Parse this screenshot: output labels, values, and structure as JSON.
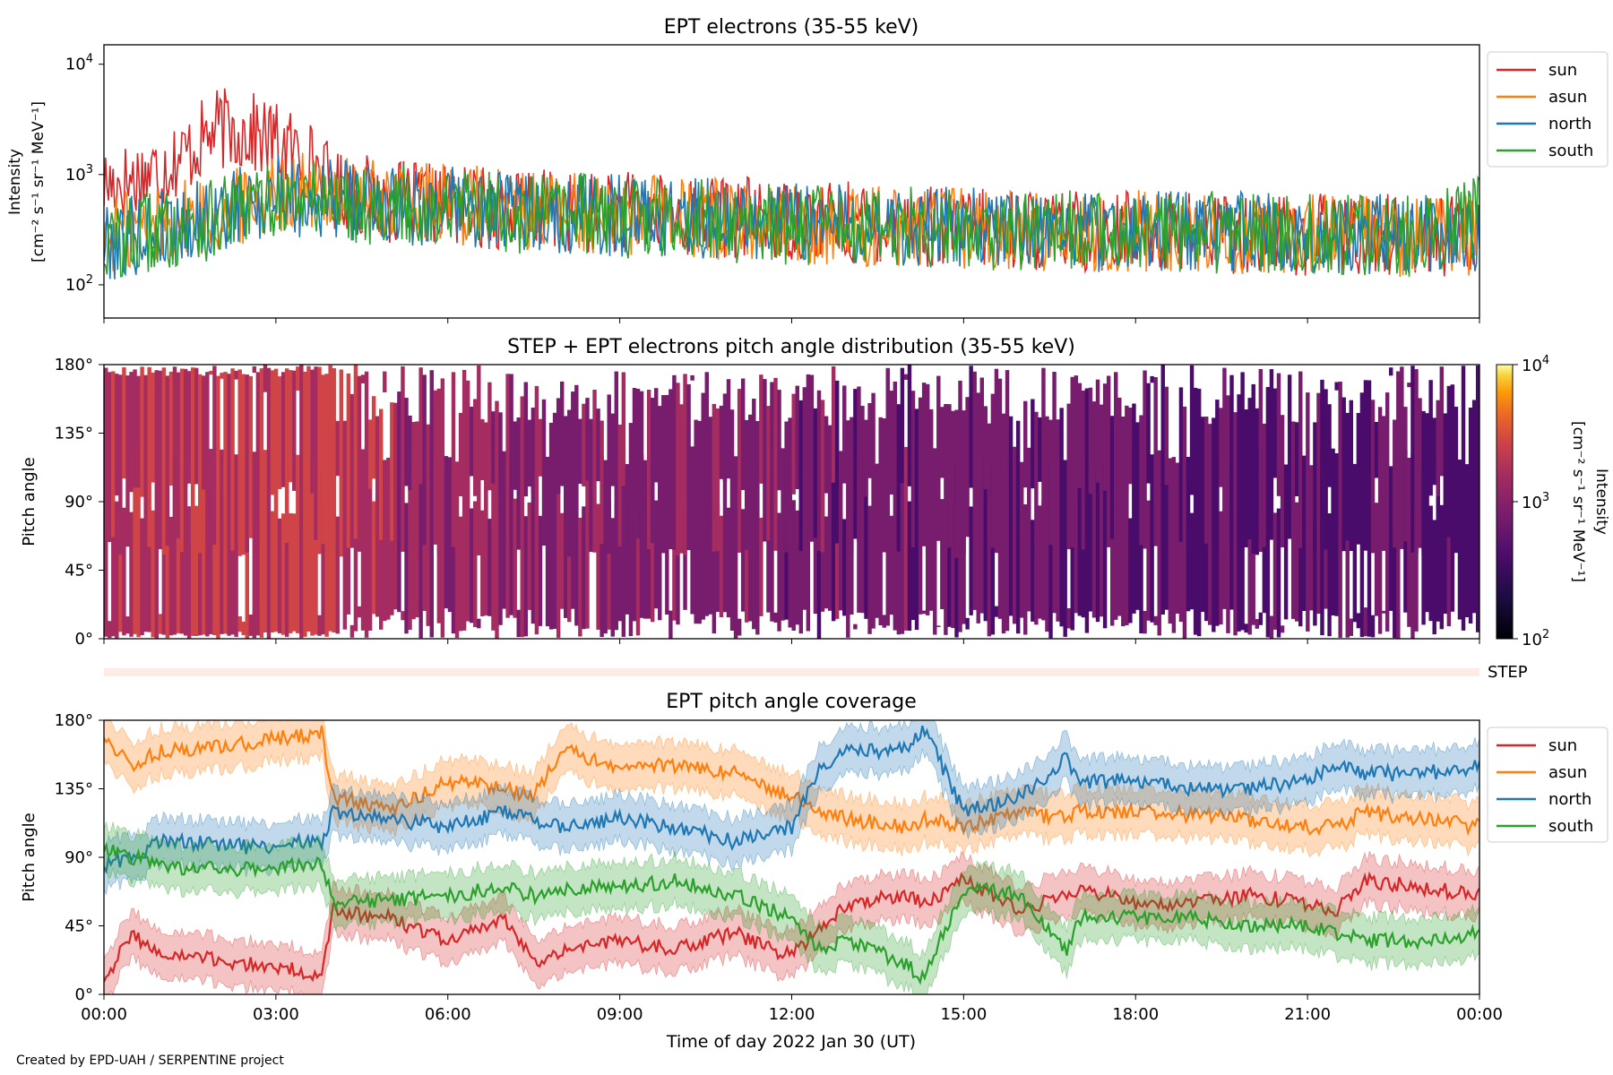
{
  "figure": {
    "footer": "Created by EPD-UAH / SERPENTINE project",
    "xlabel": "Time of day 2022 Jan 30 (UT)",
    "xticks": [
      "00:00",
      "03:00",
      "06:00",
      "09:00",
      "12:00",
      "15:00",
      "18:00",
      "21:00",
      "00:00"
    ]
  },
  "chart_data": [
    {
      "id": "intensity",
      "type": "line",
      "title": "EPT electrons (35-55 keV)",
      "ylabel_line1": "Intensity",
      "ylabel_line2": "[cm⁻² s⁻¹ sr⁻¹ MeV⁻¹]",
      "yscale": "log",
      "ylim": [
        50,
        15000
      ],
      "yticks": [
        {
          "base": "10",
          "exp": "2"
        },
        {
          "base": "10",
          "exp": "3"
        },
        {
          "base": "10",
          "exp": "4"
        }
      ],
      "xlim_hours": [
        0,
        24
      ],
      "x_hours": [
        0,
        0.5,
        1,
        1.5,
        2,
        2.5,
        3,
        3.5,
        4,
        5,
        6,
        7,
        8,
        9,
        10,
        11,
        12,
        13,
        14,
        15,
        16,
        17,
        18,
        19,
        20,
        21,
        22,
        23,
        24
      ],
      "series": [
        {
          "name": "sun",
          "color": "#d62728",
          "values": [
            1000,
            1100,
            1400,
            2000,
            3200,
            3000,
            2400,
            1800,
            900,
            700,
            650,
            600,
            580,
            560,
            520,
            500,
            480,
            450,
            420,
            400,
            390,
            380,
            380,
            370,
            360,
            350,
            350,
            340,
            330
          ]
        },
        {
          "name": "asun",
          "color": "#ff7f0e",
          "values": [
            350,
            400,
            450,
            500,
            520,
            700,
            900,
            850,
            800,
            700,
            650,
            600,
            560,
            540,
            520,
            480,
            450,
            430,
            420,
            400,
            390,
            380,
            380,
            370,
            360,
            350,
            350,
            340,
            330
          ]
        },
        {
          "name": "north",
          "color": "#1f77b4",
          "values": [
            300,
            350,
            400,
            450,
            500,
            650,
            800,
            780,
            750,
            680,
            620,
            580,
            540,
            520,
            500,
            470,
            450,
            430,
            420,
            400,
            390,
            380,
            380,
            370,
            360,
            350,
            350,
            340,
            330
          ]
        },
        {
          "name": "south",
          "color": "#2ca02c",
          "values": [
            280,
            330,
            380,
            420,
            480,
            600,
            750,
            740,
            720,
            650,
            600,
            560,
            530,
            510,
            490,
            460,
            440,
            420,
            410,
            400,
            390,
            380,
            380,
            370,
            360,
            350,
            350,
            340,
            500
          ]
        }
      ],
      "legend": "outside-right"
    },
    {
      "id": "pad",
      "type": "heatmap",
      "title": "STEP + EPT electrons pitch angle distribution (35-55 keV)",
      "ylabel": "Pitch angle",
      "yticks": [
        "0°",
        "45°",
        "90°",
        "135°",
        "180°"
      ],
      "ylim": [
        0,
        180
      ],
      "xlim_hours": [
        0,
        24
      ],
      "colorbar": {
        "label_line1": "Intensity",
        "label_line2": "[cm⁻² s⁻¹ sr⁻¹ MeV⁻¹]",
        "scale": "log",
        "range": [
          100,
          10000
        ],
        "ticks": [
          {
            "base": "10",
            "exp": "2"
          },
          {
            "base": "10",
            "exp": "3"
          },
          {
            "base": "10",
            "exp": "4"
          }
        ],
        "colormap": "inferno"
      },
      "intensity_by_hour": [
        900,
        950,
        1000,
        1100,
        850,
        700,
        650,
        600,
        550,
        520,
        500,
        480,
        460,
        440,
        420,
        400,
        390,
        380,
        370,
        360,
        350,
        340,
        330,
        320
      ]
    },
    {
      "id": "step",
      "type": "bar",
      "label": "STEP"
    },
    {
      "id": "coverage",
      "type": "area",
      "title": "EPT pitch angle coverage",
      "ylabel": "Pitch angle",
      "yticks": [
        "0°",
        "45°",
        "90°",
        "135°",
        "180°"
      ],
      "ylim": [
        0,
        180
      ],
      "xlim_hours": [
        0,
        24
      ],
      "x_hours": [
        0,
        0.5,
        1,
        1.5,
        2,
        2.5,
        3,
        3.5,
        3.8,
        4,
        5,
        6,
        7,
        7.5,
        8,
        9,
        10,
        11,
        12,
        12.5,
        13,
        14,
        14.3,
        15,
        16,
        16.8,
        17,
        18,
        19,
        20,
        21,
        21.5,
        22,
        23,
        24
      ],
      "series": [
        {
          "name": "sun",
          "color": "#d62728",
          "values": [
            10,
            40,
            25,
            25,
            22,
            20,
            18,
            15,
            10,
            55,
            50,
            35,
            50,
            20,
            30,
            35,
            30,
            40,
            25,
            45,
            60,
            65,
            60,
            75,
            55,
            65,
            70,
            60,
            60,
            65,
            60,
            55,
            75,
            70,
            65
          ]
        },
        {
          "name": "asun",
          "color": "#ff7f0e",
          "values": [
            170,
            150,
            160,
            160,
            162,
            165,
            168,
            170,
            172,
            130,
            120,
            140,
            135,
            130,
            160,
            150,
            150,
            145,
            130,
            120,
            115,
            110,
            115,
            110,
            120,
            115,
            120,
            120,
            118,
            115,
            110,
            110,
            120,
            115,
            110
          ]
        },
        {
          "name": "north",
          "color": "#1f77b4",
          "values": [
            85,
            90,
            100,
            100,
            98,
            97,
            98,
            100,
            100,
            120,
            115,
            110,
            120,
            115,
            110,
            115,
            110,
            100,
            110,
            150,
            160,
            160,
            175,
            120,
            130,
            155,
            140,
            140,
            135,
            135,
            140,
            150,
            145,
            145,
            150
          ]
        },
        {
          "name": "south",
          "color": "#2ca02c",
          "values": [
            95,
            90,
            85,
            83,
            82,
            82,
            83,
            85,
            85,
            60,
            62,
            65,
            70,
            65,
            70,
            70,
            75,
            65,
            50,
            30,
            35,
            20,
            10,
            70,
            65,
            30,
            50,
            50,
            50,
            45,
            45,
            40,
            35,
            35,
            40
          ]
        }
      ],
      "band_halfwidth_deg": 15,
      "legend": "outside-right"
    }
  ]
}
